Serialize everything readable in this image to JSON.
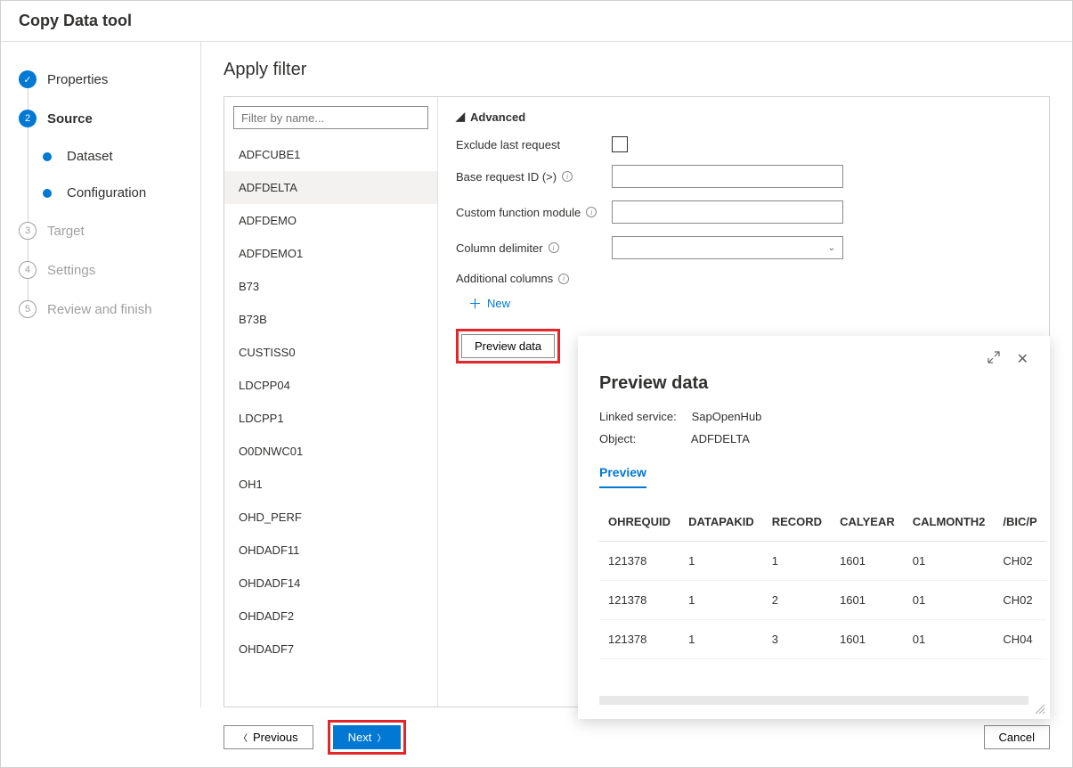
{
  "colors": {
    "accent": "#0078d4",
    "highlight_border": "#e3262a",
    "border": "#d0d0d0",
    "selected_bg": "#f3f2f1",
    "text": "#323130",
    "muted": "#a0a0a0"
  },
  "header": {
    "title": "Copy Data tool"
  },
  "steps": [
    {
      "key": "properties",
      "label": "Properties",
      "state": "done",
      "marker": "✓"
    },
    {
      "key": "source",
      "label": "Source",
      "state": "active",
      "marker": "2",
      "children": [
        {
          "key": "dataset",
          "label": "Dataset",
          "state": "sub"
        },
        {
          "key": "configuration",
          "label": "Configuration",
          "state": "sub"
        }
      ]
    },
    {
      "key": "target",
      "label": "Target",
      "state": "pending",
      "marker": "3"
    },
    {
      "key": "settings",
      "label": "Settings",
      "state": "pending",
      "marker": "4"
    },
    {
      "key": "review",
      "label": "Review and finish",
      "state": "pending",
      "marker": "5"
    }
  ],
  "main": {
    "title": "Apply filter",
    "filter_placeholder": "Filter by name...",
    "items": [
      "ADFCUBE1",
      "ADFDELTA",
      "ADFDEMO",
      "ADFDEMO1",
      "B73",
      "B73B",
      "CUSTISS0",
      "LDCPP04",
      "LDCPP1",
      "O0DNWC01",
      "OH1",
      "OHD_PERF",
      "OHDADF11",
      "OHDADF14",
      "OHDADF2",
      "OHDADF7"
    ],
    "selected_item": "ADFDELTA",
    "advanced_label": "Advanced",
    "fields": {
      "exclude_label": "Exclude last request",
      "exclude_checked": false,
      "base_request_label": "Base request ID (>)",
      "base_request_value": "",
      "custom_fn_label": "Custom function module",
      "custom_fn_value": "",
      "col_delim_label": "Column delimiter",
      "col_delim_value": "",
      "add_cols_label": "Additional columns",
      "new_label": "New"
    },
    "preview_button_label": "Preview data"
  },
  "popup": {
    "title": "Preview data",
    "linked_service_label": "Linked service:",
    "linked_service_value": "SapOpenHub",
    "object_label": "Object:",
    "object_value": "ADFDELTA",
    "tab_label": "Preview",
    "columns": [
      "OHREQUID",
      "DATAPAKID",
      "RECORD",
      "CALYEAR",
      "CALMONTH2",
      "/BIC/P"
    ],
    "rows": [
      [
        "121378",
        "1",
        "1",
        "1601",
        "01",
        "CH02"
      ],
      [
        "121378",
        "1",
        "2",
        "1601",
        "01",
        "CH02"
      ],
      [
        "121378",
        "1",
        "3",
        "1601",
        "01",
        "CH04"
      ]
    ]
  },
  "footer": {
    "previous_label": "Previous",
    "next_label": "Next",
    "cancel_label": "Cancel"
  }
}
